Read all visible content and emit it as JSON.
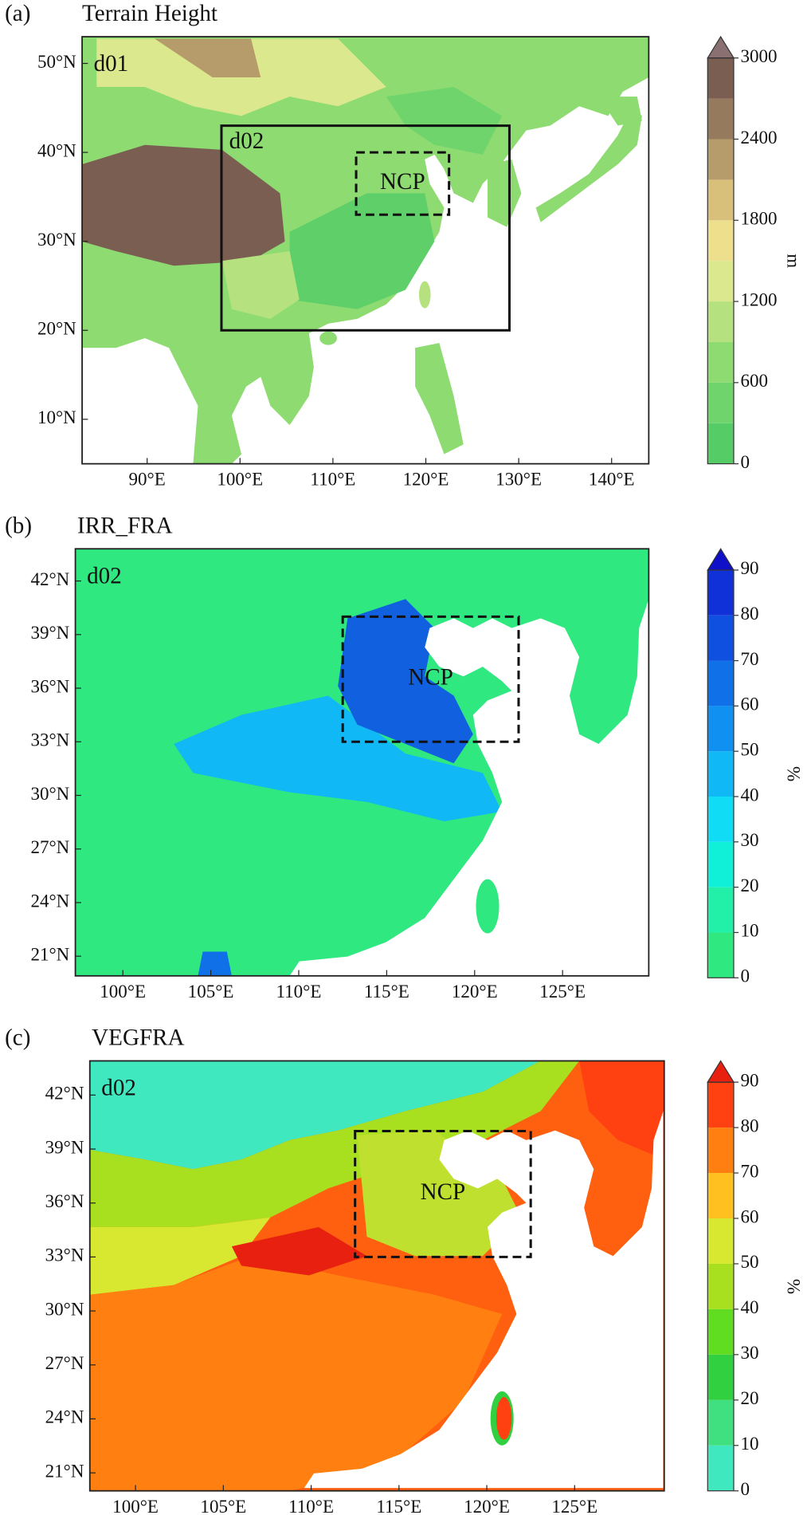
{
  "panels": [
    {
      "label": "(a)",
      "title": "Terrain Height",
      "domain_label": "d01",
      "xlim": [
        83,
        144
      ],
      "ylim": [
        5,
        53
      ],
      "xticks": [
        {
          "value": 90,
          "label": "90°E"
        },
        {
          "value": 100,
          "label": "100°E"
        },
        {
          "value": 110,
          "label": "110°E"
        },
        {
          "value": 120,
          "label": "120°E"
        },
        {
          "value": 130,
          "label": "130°E"
        },
        {
          "value": 140,
          "label": "140°E"
        }
      ],
      "yticks": [
        {
          "value": 10,
          "label": "10°N"
        },
        {
          "value": 20,
          "label": "20°N"
        },
        {
          "value": 30,
          "label": "30°N"
        },
        {
          "value": 40,
          "label": "40°N"
        },
        {
          "value": 50,
          "label": "50°N"
        }
      ],
      "boxes": [
        {
          "label": "d02",
          "lon": [
            98,
            129
          ],
          "lat": [
            20,
            43
          ],
          "style": "solid"
        },
        {
          "label": "NCP",
          "lon": [
            112.5,
            122.5
          ],
          "lat": [
            33,
            40
          ],
          "style": "dashed"
        }
      ],
      "colorbar": {
        "unit": "m",
        "lim": [
          0,
          3000
        ],
        "levels": [
          0,
          300,
          600,
          900,
          1200,
          1500,
          1800,
          2100,
          2400,
          2700,
          3000
        ],
        "colors": [
          "#55cc66",
          "#6ed46b",
          "#8edb72",
          "#b5e27e",
          "#dce88e",
          "#eedf8c",
          "#d8c07a",
          "#b59c6a",
          "#957a5e",
          "#7b5e52"
        ],
        "extend_color": "#8a7070",
        "ticks": [
          0,
          600,
          1200,
          1800,
          2400,
          3000
        ]
      }
    },
    {
      "label": "(b)",
      "title": "IRR_FRA",
      "domain_label": "d02",
      "xlim": [
        97.3,
        129.9
      ],
      "ylim": [
        19.9,
        43.8
      ],
      "xticks": [
        {
          "value": 100,
          "label": "100°E"
        },
        {
          "value": 105,
          "label": "105°E"
        },
        {
          "value": 110,
          "label": "110°E"
        },
        {
          "value": 115,
          "label": "115°E"
        },
        {
          "value": 120,
          "label": "120°E"
        },
        {
          "value": 125,
          "label": "125°E"
        }
      ],
      "yticks": [
        {
          "value": 21,
          "label": "21°N"
        },
        {
          "value": 24,
          "label": "24°N"
        },
        {
          "value": 27,
          "label": "27°N"
        },
        {
          "value": 30,
          "label": "30°N"
        },
        {
          "value": 33,
          "label": "33°N"
        },
        {
          "value": 36,
          "label": "36°N"
        },
        {
          "value": 39,
          "label": "39°N"
        },
        {
          "value": 42,
          "label": "42°N"
        }
      ],
      "boxes": [
        {
          "label": "NCP",
          "lon": [
            112.5,
            122.5
          ],
          "lat": [
            33,
            40
          ],
          "style": "dashed"
        }
      ],
      "colorbar": {
        "unit": "%",
        "lim": [
          0,
          90
        ],
        "levels": [
          0,
          10,
          20,
          30,
          40,
          50,
          60,
          70,
          80,
          90
        ],
        "colors": [
          "#30e880",
          "#22f0a8",
          "#10f0d8",
          "#10dcf5",
          "#10b8f5",
          "#1090f0",
          "#1070e8",
          "#1050e0",
          "#1030d8"
        ],
        "extend_color": "#1010c8",
        "ticks": [
          0,
          10,
          20,
          30,
          40,
          50,
          60,
          70,
          80,
          90
        ]
      }
    },
    {
      "label": "(c)",
      "title": "VEGFRA",
      "domain_label": "d02",
      "xlim": [
        97.4,
        130.1
      ],
      "ylim": [
        20,
        43.9
      ],
      "xticks": [
        {
          "value": 100,
          "label": "100°E"
        },
        {
          "value": 105,
          "label": "105°E"
        },
        {
          "value": 110,
          "label": "110°E"
        },
        {
          "value": 115,
          "label": "115°E"
        },
        {
          "value": 120,
          "label": "120°E"
        },
        {
          "value": 125,
          "label": "125°E"
        }
      ],
      "yticks": [
        {
          "value": 21,
          "label": "21°N"
        },
        {
          "value": 24,
          "label": "24°N"
        },
        {
          "value": 27,
          "label": "27°N"
        },
        {
          "value": 30,
          "label": "30°N"
        },
        {
          "value": 33,
          "label": "33°N"
        },
        {
          "value": 36,
          "label": "36°N"
        },
        {
          "value": 39,
          "label": "39°N"
        },
        {
          "value": 42,
          "label": "42°N"
        }
      ],
      "boxes": [
        {
          "label": "NCP",
          "lon": [
            112.5,
            122.5
          ],
          "lat": [
            33,
            40
          ],
          "style": "dashed"
        }
      ],
      "colorbar": {
        "unit": "%",
        "lim": [
          0,
          90
        ],
        "levels": [
          0,
          10,
          20,
          30,
          40,
          50,
          60,
          70,
          80,
          90
        ],
        "colors": [
          "#40e8c0",
          "#40e080",
          "#30d040",
          "#60dd20",
          "#a8e020",
          "#d8e830",
          "#ffc020",
          "#ff8010",
          "#ff4010"
        ],
        "extend_color": "#e82010",
        "ticks": [
          0,
          10,
          20,
          30,
          40,
          50,
          60,
          70,
          80,
          90
        ]
      }
    }
  ]
}
